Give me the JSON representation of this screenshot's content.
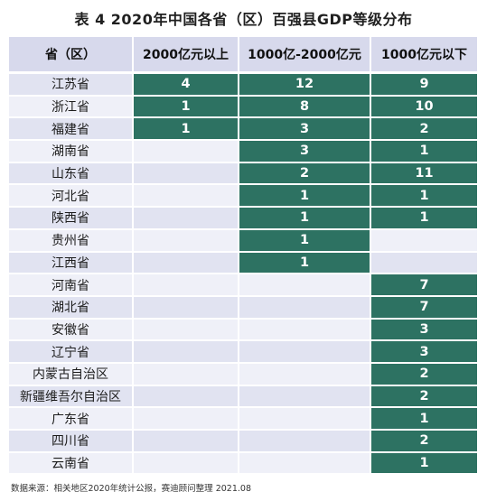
{
  "title": "表 4  2020年中国各省（区）百强县GDP等级分布",
  "headers": [
    "省（区）",
    "2000亿元以上",
    "1000亿-2000亿元",
    "1000亿元以下"
  ],
  "rows": [
    [
      "江苏省",
      "4",
      "12",
      "9"
    ],
    [
      "浙江省",
      "1",
      "8",
      "10"
    ],
    [
      "福建省",
      "1",
      "3",
      "2"
    ],
    [
      "湖南省",
      "",
      "3",
      "1"
    ],
    [
      "山东省",
      "",
      "2",
      "11"
    ],
    [
      "河北省",
      "",
      "1",
      "1"
    ],
    [
      "陕西省",
      "",
      "1",
      "1"
    ],
    [
      "贵州省",
      "",
      "1",
      ""
    ],
    [
      "江西省",
      "",
      "1",
      ""
    ],
    [
      "河南省",
      "",
      "",
      "7"
    ],
    [
      "湖北省",
      "",
      "",
      "7"
    ],
    [
      "安徽省",
      "",
      "",
      "3"
    ],
    [
      "辽宁省",
      "",
      "",
      "3"
    ],
    [
      "内蒙古自治区",
      "",
      "",
      "2"
    ],
    [
      "新疆维吾尔自治区",
      "",
      "",
      "2"
    ],
    [
      "广东省",
      "",
      "",
      "1"
    ],
    [
      "四川省",
      "",
      "",
      "2"
    ],
    [
      "云南省",
      "",
      "",
      "1"
    ]
  ],
  "source": "数据来源：相关地区2020年统计公报，赛迪顾问整理  2021.08",
  "colors": {
    "header_bg": "#d7d9ec",
    "row_bg_a": "#e1e3f1",
    "row_bg_b": "#eff0f8",
    "value_bg": "#2d7262",
    "value_text": "#ffffff"
  }
}
